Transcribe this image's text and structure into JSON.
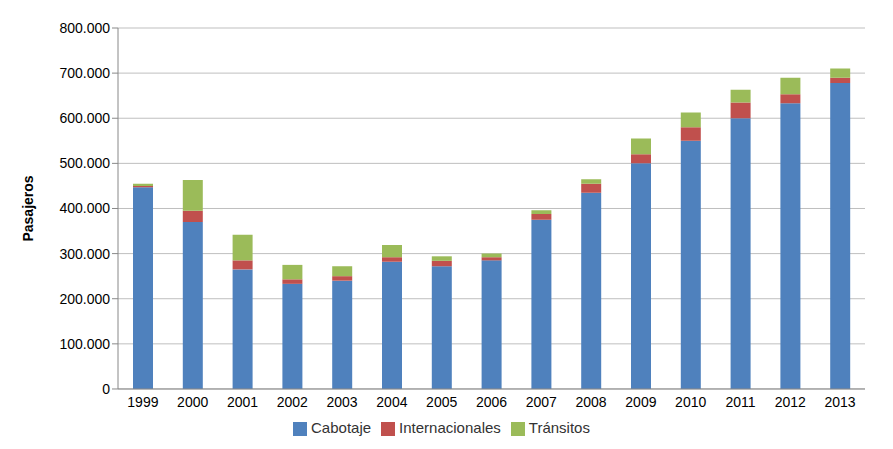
{
  "chart_data": {
    "type": "bar",
    "stacked": true,
    "grid": true,
    "legend": "bottom",
    "y_label": "Pasajeros",
    "categories": [
      "1999",
      "2000",
      "2001",
      "2002",
      "2003",
      "2004",
      "2005",
      "2006",
      "2007",
      "2008",
      "2009",
      "2010",
      "2011",
      "2012",
      "2013"
    ],
    "series": [
      {
        "name": "Cabotaje",
        "color": "#4f81bd",
        "values": [
          447000,
          370000,
          265000,
          233000,
          240000,
          282000,
          272000,
          285000,
          375000,
          435000,
          500000,
          550000,
          600000,
          633000,
          678000
        ]
      },
      {
        "name": "Internacionales",
        "color": "#c0504d",
        "values": [
          3000,
          25000,
          20000,
          10000,
          10000,
          10000,
          12000,
          7000,
          13000,
          20000,
          20000,
          30000,
          35000,
          20000,
          12000
        ]
      },
      {
        "name": "Tránsitos",
        "color": "#9bbb59",
        "values": [
          5000,
          68000,
          57000,
          32000,
          22000,
          27000,
          10000,
          8000,
          8000,
          10000,
          35000,
          33000,
          28000,
          37000,
          20000
        ]
      }
    ],
    "ylim": [
      0,
      800000
    ],
    "yticks": [
      0,
      {
        "value": 100000,
        "label": "100.000"
      },
      {
        "value": 200000,
        "label": "200.000"
      },
      {
        "value": 300000,
        "label": "300.000"
      },
      {
        "value": 400000,
        "label": "400.000"
      },
      {
        "value": 500000,
        "label": "500.000"
      },
      {
        "value": 600000,
        "label": "600.000"
      },
      {
        "value": 700000,
        "label": "700.000"
      },
      {
        "value": 800000,
        "label": "800.000"
      }
    ]
  }
}
